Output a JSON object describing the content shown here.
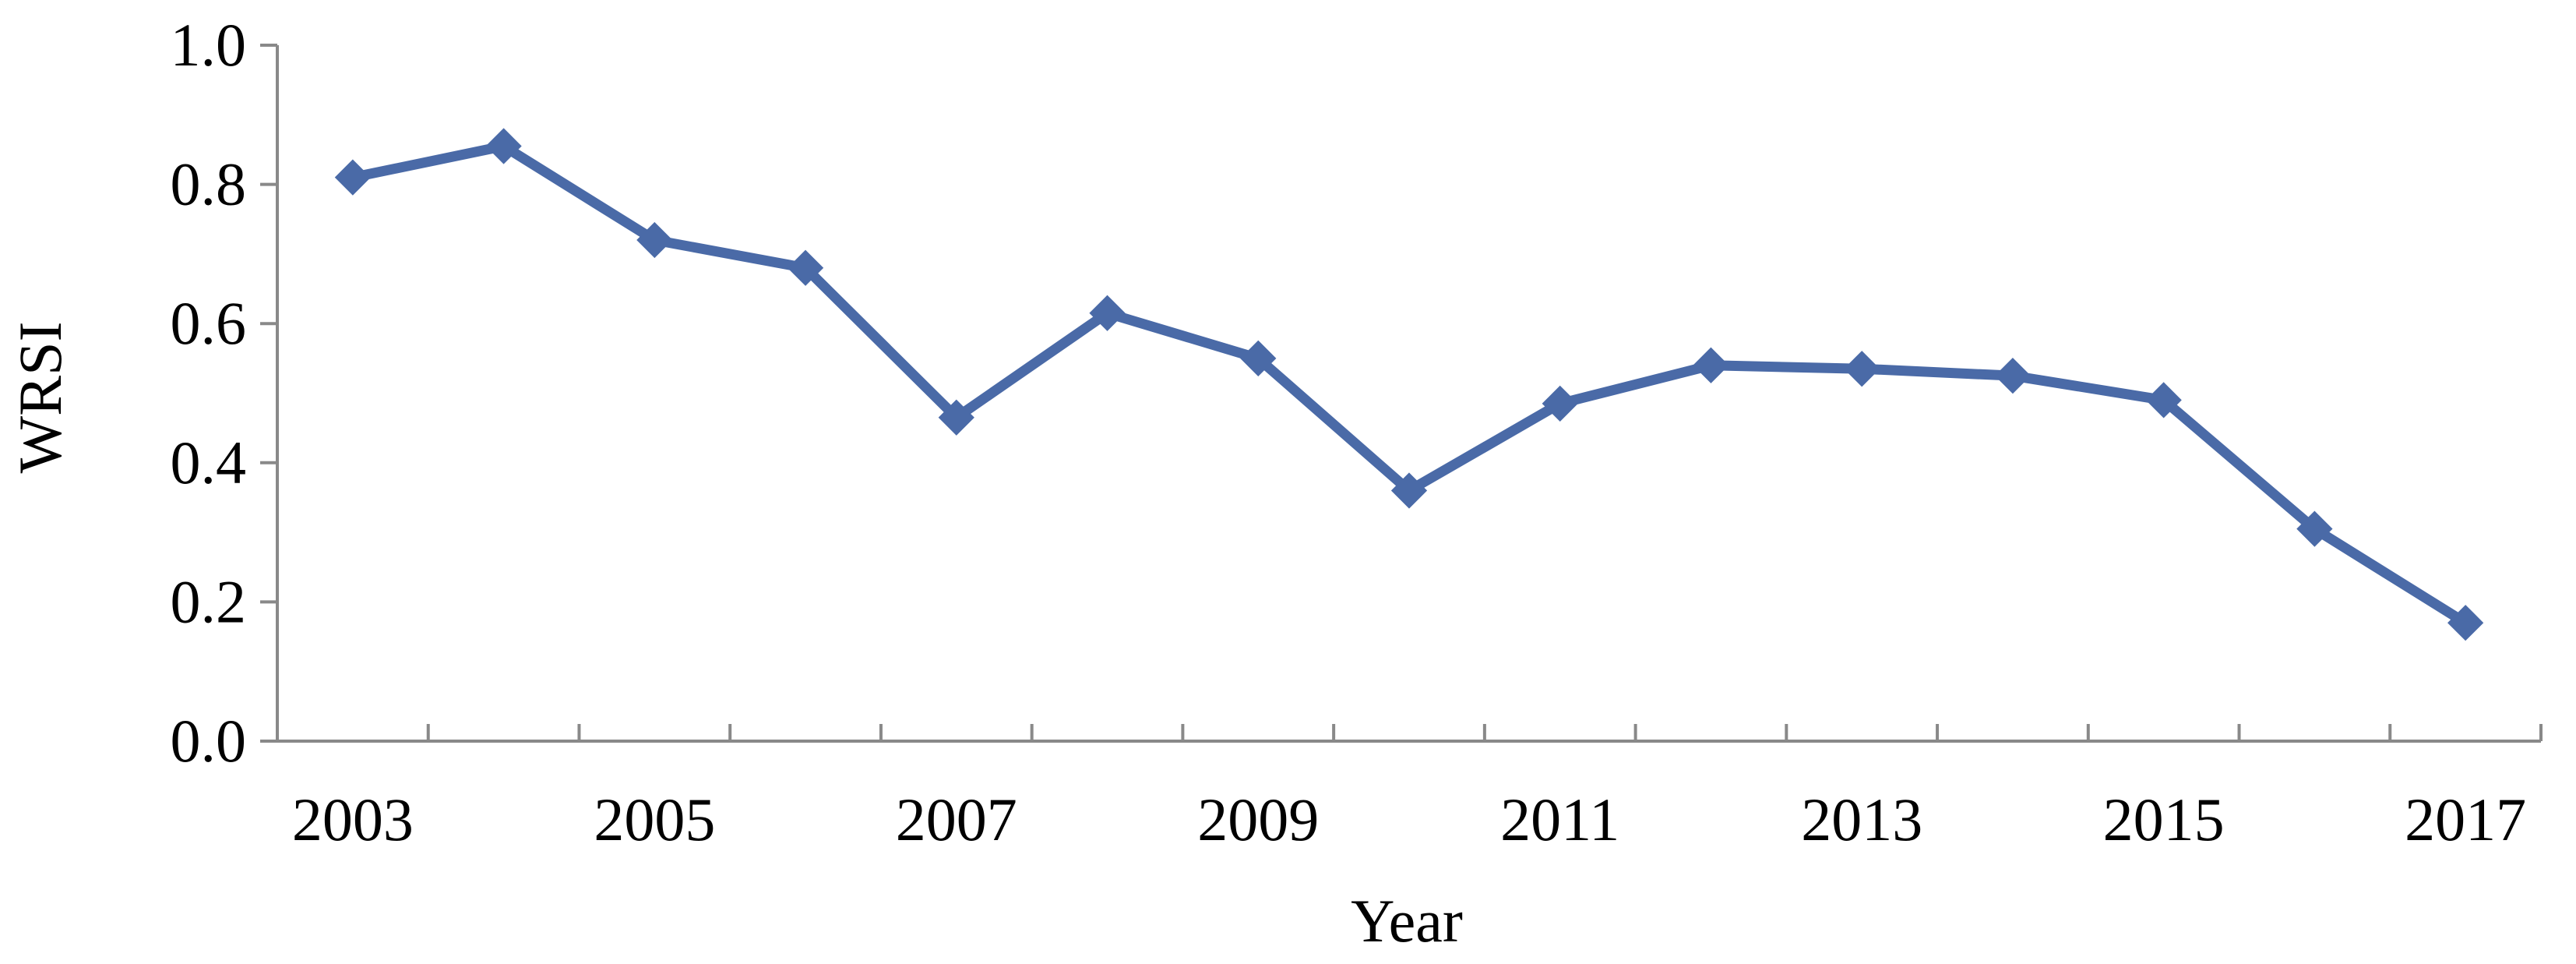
{
  "chart_data": {
    "type": "line",
    "title": "",
    "xlabel": "Year",
    "ylabel": "WRSI",
    "x": [
      2003,
      2004,
      2005,
      2006,
      2007,
      2008,
      2009,
      2010,
      2011,
      2012,
      2013,
      2014,
      2015,
      2016,
      2017
    ],
    "x_tick_labels": [
      "2003",
      "2005",
      "2007",
      "2009",
      "2011",
      "2013",
      "2015",
      "2017"
    ],
    "y_tick_labels": [
      "0.0",
      "0.2",
      "0.4",
      "0.6",
      "0.8",
      "1.0"
    ],
    "ylim": [
      0,
      1.0
    ],
    "series": [
      {
        "values": [
          0.81,
          0.855,
          0.72,
          0.68,
          0.465,
          0.615,
          0.55,
          0.36,
          0.485,
          0.54,
          0.535,
          0.525,
          0.49,
          0.305,
          0.17
        ],
        "color": "#4a6aa7",
        "marker": "diamond"
      }
    ],
    "grid": false,
    "legend": "none"
  }
}
